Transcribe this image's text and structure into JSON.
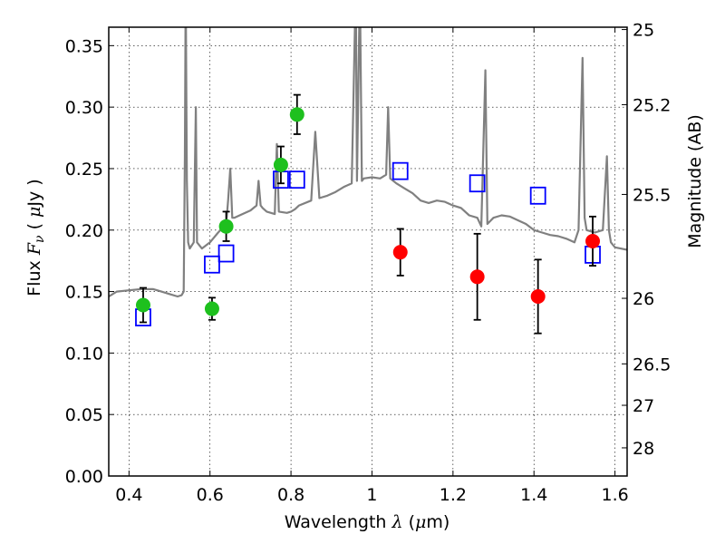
{
  "chart_data": {
    "type": "scatter",
    "xlabel": {
      "text": "Wavelength",
      "symbol": "λ",
      "unit_open": "(",
      "unit_mu": "μ",
      "unit_rest": "m)"
    },
    "ylabel": {
      "text": "Flux",
      "symbol": "F",
      "subscript": "ν",
      "unit_open": "(",
      "unit_mu": "μ",
      "unit_rest": "Jy )"
    },
    "y2label": "Magnitude (AB)",
    "xlim": [
      0.35,
      1.63
    ],
    "ylim": [
      0.0,
      0.365
    ],
    "grid": true,
    "x_ticks": [
      {
        "value": 0.4,
        "label": "0.4"
      },
      {
        "value": 0.6,
        "label": "0.6"
      },
      {
        "value": 0.8,
        "label": "0.8"
      },
      {
        "value": 1.0,
        "label": "1"
      },
      {
        "value": 1.2,
        "label": "1.2"
      },
      {
        "value": 1.4,
        "label": "1.4"
      },
      {
        "value": 1.6,
        "label": "1.6"
      }
    ],
    "y_ticks": [
      {
        "value": 0.0,
        "label": "0.00"
      },
      {
        "value": 0.05,
        "label": "0.05"
      },
      {
        "value": 0.1,
        "label": "0.10"
      },
      {
        "value": 0.15,
        "label": "0.15"
      },
      {
        "value": 0.2,
        "label": "0.20"
      },
      {
        "value": 0.25,
        "label": "0.25"
      },
      {
        "value": 0.3,
        "label": "0.30"
      },
      {
        "value": 0.35,
        "label": "0.35"
      }
    ],
    "y2_ticks": [
      {
        "label": "25",
        "flux": 0.3631
      },
      {
        "label": "25.2",
        "flux": 0.302
      },
      {
        "label": "25.5",
        "flux": 0.229
      },
      {
        "label": "26",
        "flux": 0.1445
      },
      {
        "label": "26.5",
        "flux": 0.0912
      },
      {
        "label": "27",
        "flux": 0.0575
      },
      {
        "label": "28",
        "flux": 0.0229
      }
    ],
    "series": [
      {
        "kind": "line",
        "color": "#808080",
        "points": [
          [
            0.35,
            0.146
          ],
          [
            0.37,
            0.15
          ],
          [
            0.4,
            0.151
          ],
          [
            0.43,
            0.152
          ],
          [
            0.46,
            0.152
          ],
          [
            0.48,
            0.15
          ],
          [
            0.5,
            0.148
          ],
          [
            0.52,
            0.146
          ],
          [
            0.53,
            0.147
          ],
          [
            0.535,
            0.15
          ],
          [
            0.538,
            0.26
          ],
          [
            0.54,
            0.4
          ],
          [
            0.543,
            0.24
          ],
          [
            0.546,
            0.19
          ],
          [
            0.55,
            0.185
          ],
          [
            0.56,
            0.19
          ],
          [
            0.565,
            0.3
          ],
          [
            0.568,
            0.19
          ],
          [
            0.58,
            0.185
          ],
          [
            0.6,
            0.19
          ],
          [
            0.62,
            0.198
          ],
          [
            0.64,
            0.205
          ],
          [
            0.645,
            0.225
          ],
          [
            0.65,
            0.25
          ],
          [
            0.655,
            0.21
          ],
          [
            0.66,
            0.21
          ],
          [
            0.68,
            0.213
          ],
          [
            0.7,
            0.216
          ],
          [
            0.715,
            0.22
          ],
          [
            0.72,
            0.24
          ],
          [
            0.725,
            0.22
          ],
          [
            0.73,
            0.218
          ],
          [
            0.74,
            0.215
          ],
          [
            0.76,
            0.213
          ],
          [
            0.765,
            0.27
          ],
          [
            0.77,
            0.215
          ],
          [
            0.79,
            0.214
          ],
          [
            0.8,
            0.215
          ],
          [
            0.81,
            0.217
          ],
          [
            0.82,
            0.22
          ],
          [
            0.85,
            0.224
          ],
          [
            0.86,
            0.28
          ],
          [
            0.87,
            0.226
          ],
          [
            0.89,
            0.228
          ],
          [
            0.91,
            0.231
          ],
          [
            0.93,
            0.235
          ],
          [
            0.95,
            0.238
          ],
          [
            0.96,
            0.4
          ],
          [
            0.963,
            0.24
          ],
          [
            0.97,
            0.4
          ],
          [
            0.975,
            0.24
          ],
          [
            0.98,
            0.242
          ],
          [
            1.0,
            0.243
          ],
          [
            1.02,
            0.242
          ],
          [
            1.035,
            0.245
          ],
          [
            1.04,
            0.3
          ],
          [
            1.045,
            0.242
          ],
          [
            1.06,
            0.238
          ],
          [
            1.08,
            0.234
          ],
          [
            1.1,
            0.23
          ],
          [
            1.12,
            0.224
          ],
          [
            1.14,
            0.222
          ],
          [
            1.16,
            0.224
          ],
          [
            1.18,
            0.223
          ],
          [
            1.2,
            0.22
          ],
          [
            1.22,
            0.218
          ],
          [
            1.24,
            0.212
          ],
          [
            1.26,
            0.21
          ],
          [
            1.27,
            0.203
          ],
          [
            1.28,
            0.33
          ],
          [
            1.285,
            0.205
          ],
          [
            1.3,
            0.21
          ],
          [
            1.32,
            0.212
          ],
          [
            1.34,
            0.211
          ],
          [
            1.36,
            0.208
          ],
          [
            1.38,
            0.205
          ],
          [
            1.4,
            0.2
          ],
          [
            1.42,
            0.198
          ],
          [
            1.44,
            0.196
          ],
          [
            1.46,
            0.195
          ],
          [
            1.48,
            0.193
          ],
          [
            1.5,
            0.19
          ],
          [
            1.51,
            0.2
          ],
          [
            1.52,
            0.34
          ],
          [
            1.525,
            0.21
          ],
          [
            1.53,
            0.2
          ],
          [
            1.55,
            0.198
          ],
          [
            1.57,
            0.2
          ],
          [
            1.58,
            0.26
          ],
          [
            1.585,
            0.2
          ],
          [
            1.59,
            0.19
          ],
          [
            1.6,
            0.186
          ],
          [
            1.63,
            0.184
          ]
        ]
      },
      {
        "kind": "scatter-circle",
        "color": "#1ec01e",
        "points": [
          {
            "x": 0.435,
            "y": 0.139,
            "err": 0.014
          },
          {
            "x": 0.605,
            "y": 0.136,
            "err": 0.009
          },
          {
            "x": 0.64,
            "y": 0.203,
            "err": 0.012
          },
          {
            "x": 0.775,
            "y": 0.253,
            "err": 0.015
          },
          {
            "x": 0.815,
            "y": 0.294,
            "err": 0.016
          }
        ]
      },
      {
        "kind": "scatter-circle",
        "color": "#ff0000",
        "points": [
          {
            "x": 1.07,
            "y": 0.182,
            "err": 0.019
          },
          {
            "x": 1.26,
            "y": 0.162,
            "err": 0.035
          },
          {
            "x": 1.41,
            "y": 0.146,
            "err": 0.03
          },
          {
            "x": 1.545,
            "y": 0.191,
            "err": 0.02
          }
        ]
      },
      {
        "kind": "scatter-square",
        "color": "#0000ff",
        "points": [
          {
            "x": 0.435,
            "y": 0.129
          },
          {
            "x": 0.605,
            "y": 0.172
          },
          {
            "x": 0.64,
            "y": 0.181
          },
          {
            "x": 0.775,
            "y": 0.241
          },
          {
            "x": 0.815,
            "y": 0.241
          },
          {
            "x": 1.07,
            "y": 0.248
          },
          {
            "x": 1.26,
            "y": 0.238
          },
          {
            "x": 1.41,
            "y": 0.228
          },
          {
            "x": 1.545,
            "y": 0.18
          }
        ]
      }
    ]
  }
}
